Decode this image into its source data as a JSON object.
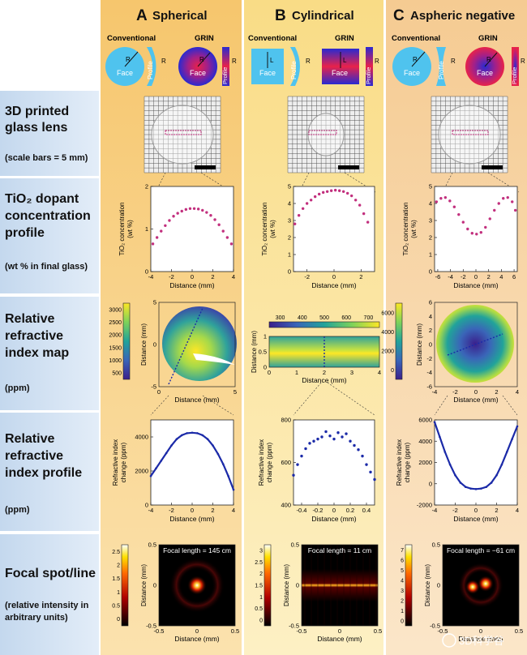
{
  "columns": [
    {
      "letter": "A",
      "title": "Spherical"
    },
    {
      "letter": "B",
      "title": "Cylindrical"
    },
    {
      "letter": "C",
      "title": "Aspheric negative"
    }
  ],
  "lens_header": {
    "conventional": "Conventional",
    "grin": "GRIN",
    "face": "Face",
    "profile": "Profile",
    "R": "R",
    "L": "L"
  },
  "rows": [
    {
      "title_lines": [
        "3D printed",
        "glass lens"
      ],
      "note": "(scale bars = 5 mm)"
    },
    {
      "title_lines": [
        "TiO₂ dopant",
        "concentration",
        "profile"
      ],
      "note": "(wt % in final glass)"
    },
    {
      "title_lines": [
        "Relative",
        "refractive",
        "index map"
      ],
      "note": "(ppm)"
    },
    {
      "title_lines": [
        "Relative",
        "refractive",
        "index profile"
      ],
      "note": "(ppm)"
    },
    {
      "title_lines": [
        "Focal spot/line"
      ],
      "note_lines": [
        "(relative intensity in",
        "arbitrary units)"
      ]
    }
  ],
  "axis_labels": {
    "distance_mm": "Distance (mm)",
    "tio2_y": [
      "TiO₂ concentration",
      "(wt %)"
    ],
    "ri_y": [
      "Refractive index",
      "change (ppm)"
    ]
  },
  "focal_lengths": [
    "Focal length = 145 cm",
    "Focal length = 11 cm",
    "Focal length = −61 cm"
  ],
  "colors": {
    "col_a": "#f8cf7e",
    "col_b": "#fbe39a",
    "col_c": "#f7d6a6",
    "row_label_bg": "#cfe0f1",
    "data_pink": "#c2307e",
    "data_blue": "#1b2aa8",
    "lens_blue": "#4fc3ee",
    "profile_magenta": "#e0197b"
  },
  "watermark": "3D科学谷",
  "chart_data": [
    {
      "type": "scatter",
      "panel": "A-TiO2",
      "xlabel": "Distance (mm)",
      "ylabel": "TiO₂ concentration (wt %)",
      "xlim": [
        -4,
        4
      ],
      "ylim": [
        0,
        2
      ],
      "xticks": [
        -4,
        -2,
        0,
        2,
        4
      ],
      "yticks": [
        0,
        1,
        2
      ],
      "x": [
        -3.8,
        -3.4,
        -3.0,
        -2.6,
        -2.2,
        -1.8,
        -1.4,
        -1.0,
        -0.6,
        -0.2,
        0.2,
        0.6,
        1.0,
        1.4,
        1.8,
        2.2,
        2.6,
        3.0,
        3.4,
        3.8
      ],
      "y": [
        0.65,
        0.8,
        0.95,
        1.08,
        1.2,
        1.3,
        1.37,
        1.42,
        1.46,
        1.48,
        1.48,
        1.47,
        1.44,
        1.39,
        1.32,
        1.22,
        1.1,
        0.95,
        0.8,
        0.65
      ]
    },
    {
      "type": "scatter",
      "panel": "B-TiO2",
      "xlabel": "Distance (mm)",
      "ylabel": "TiO₂ concentration (wt %)",
      "xlim": [
        -3,
        3
      ],
      "ylim": [
        0,
        5
      ],
      "xticks": [
        -2,
        0,
        2
      ],
      "yticks": [
        0,
        1,
        2,
        3,
        4,
        5
      ],
      "x": [
        -2.9,
        -2.6,
        -2.3,
        -2.0,
        -1.7,
        -1.4,
        -1.1,
        -0.8,
        -0.5,
        -0.2,
        0.1,
        0.4,
        0.7,
        1.0,
        1.3,
        1.6,
        1.9,
        2.2,
        2.5
      ],
      "y": [
        2.8,
        3.3,
        3.7,
        4.0,
        4.2,
        4.4,
        4.55,
        4.65,
        4.7,
        4.75,
        4.78,
        4.75,
        4.7,
        4.6,
        4.45,
        4.2,
        3.9,
        3.4,
        2.9
      ]
    },
    {
      "type": "scatter",
      "panel": "C-TiO2",
      "xlabel": "Distance (mm)",
      "ylabel": "TiO₂ concentration (wt %)",
      "xlim": [
        -6.5,
        6.5
      ],
      "ylim": [
        0,
        5
      ],
      "xticks": [
        -6,
        -4,
        -2,
        0,
        2,
        4,
        6
      ],
      "yticks": [
        0,
        1,
        2,
        3,
        4,
        5
      ],
      "x": [
        -6.2,
        -5.5,
        -4.8,
        -4.1,
        -3.4,
        -2.7,
        -2.0,
        -1.3,
        -0.6,
        0.1,
        0.8,
        1.5,
        2.2,
        2.9,
        3.6,
        4.3,
        5.0,
        5.7,
        6.2
      ],
      "y": [
        4.1,
        4.3,
        4.35,
        4.15,
        3.8,
        3.35,
        2.9,
        2.5,
        2.25,
        2.2,
        2.3,
        2.6,
        3.1,
        3.6,
        4.0,
        4.3,
        4.35,
        4.1,
        3.6
      ]
    },
    {
      "type": "line",
      "panel": "A-RI",
      "xlabel": "Distance (mm)",
      "ylabel": "Refractive index change (ppm)",
      "xlim": [
        -4,
        4
      ],
      "ylim": [
        0,
        5000
      ],
      "xticks": [
        -4,
        -2,
        0,
        2,
        4
      ],
      "yticks": [
        0,
        2000,
        4000
      ],
      "x": [
        -4,
        -3.5,
        -3,
        -2.5,
        -2,
        -1.5,
        -1,
        -0.5,
        0,
        0.5,
        1,
        1.5,
        2,
        2.5,
        3,
        3.5,
        4
      ],
      "y": [
        1700,
        2150,
        2600,
        3050,
        3500,
        3870,
        4100,
        4220,
        4250,
        4220,
        4100,
        3870,
        3500,
        3000,
        2400,
        1700,
        900
      ]
    },
    {
      "type": "scatter",
      "panel": "B-RI",
      "xlabel": "Distance (mm)",
      "ylabel": "Refractive index change (ppm)",
      "xlim": [
        -0.5,
        0.5
      ],
      "ylim": [
        400,
        800
      ],
      "xticks": [
        -0.4,
        -0.2,
        0,
        0.2,
        0.4
      ],
      "yticks": [
        400,
        600,
        800
      ],
      "x": [
        -0.5,
        -0.45,
        -0.4,
        -0.35,
        -0.3,
        -0.25,
        -0.2,
        -0.15,
        -0.1,
        -0.05,
        0,
        0.05,
        0.1,
        0.15,
        0.2,
        0.25,
        0.3,
        0.35,
        0.4,
        0.45,
        0.5
      ],
      "y": [
        540,
        590,
        630,
        665,
        690,
        700,
        710,
        720,
        745,
        725,
        710,
        740,
        720,
        735,
        700,
        680,
        660,
        630,
        590,
        555,
        520
      ]
    },
    {
      "type": "line",
      "panel": "C-RI",
      "xlabel": "Distance (mm)",
      "ylabel": "Refractive index change (ppm)",
      "xlim": [
        -4,
        4
      ],
      "ylim": [
        -2000,
        6000
      ],
      "xticks": [
        -4,
        -2,
        0,
        2,
        4
      ],
      "yticks": [
        -2000,
        0,
        2000,
        4000,
        6000
      ],
      "x": [
        -4,
        -3.5,
        -3,
        -2.5,
        -2,
        -1.5,
        -1,
        -0.5,
        0,
        0.5,
        1,
        1.5,
        2,
        2.5,
        3,
        3.5,
        4
      ],
      "y": [
        5800,
        4400,
        3000,
        1800,
        800,
        100,
        -300,
        -450,
        -500,
        -450,
        -300,
        100,
        800,
        1800,
        3000,
        4200,
        5400
      ]
    }
  ],
  "index_maps": [
    {
      "panel": "A-map",
      "colorbar_ticks": [
        500,
        1000,
        1500,
        2000,
        2500,
        3000
      ],
      "xticks": [
        0,
        5
      ],
      "yticks": [
        -5,
        0,
        5
      ],
      "xlabel": "Distance (mm)",
      "ylabel": "Distance (mm)"
    },
    {
      "panel": "B-map",
      "colorbar_ticks": [
        300,
        400,
        500,
        600,
        700
      ],
      "xticks": [
        0,
        1,
        2,
        3,
        4
      ],
      "yticks": [
        0,
        0.5,
        1
      ],
      "xlabel": "Distance (mm)",
      "ylabel": "Distance (mm)"
    },
    {
      "panel": "C-map",
      "colorbar_ticks": [
        0,
        2000,
        4000,
        6000
      ],
      "xticks": [
        -4,
        -2,
        0,
        2,
        4
      ],
      "yticks": [
        -6,
        -4,
        -2,
        0,
        2,
        4,
        6
      ],
      "xlabel": "Distance (mm)",
      "ylabel": "Distance (mm)"
    }
  ],
  "focal_panels": [
    {
      "panel": "A-focal",
      "colorbar_ticks": [
        0,
        0.5,
        1,
        1.5,
        2,
        2.5
      ],
      "xticks": [
        -0.5,
        0,
        0.5
      ],
      "yticks": [
        -0.5,
        0,
        0.5
      ],
      "xlabel": "Distance (mm)",
      "ylabel": "Distance (mm)"
    },
    {
      "panel": "B-focal",
      "colorbar_ticks": [
        0,
        0.5,
        1,
        1.5,
        2,
        2.5,
        3
      ],
      "xticks": [
        -0.5,
        0,
        0.5
      ],
      "yticks": [
        -0.5,
        0,
        0.5
      ],
      "xlabel": "Distance (mm)",
      "ylabel": "Distance (mm)"
    },
    {
      "panel": "C-focal",
      "colorbar_ticks": [
        0,
        1,
        2,
        3,
        4,
        5,
        6,
        7
      ],
      "xticks": [
        -0.5,
        0,
        0.5
      ],
      "yticks": [
        -0.5,
        0,
        0.5
      ],
      "xlabel": "Distance (mm)",
      "ylabel": "Distance (mm)"
    }
  ]
}
